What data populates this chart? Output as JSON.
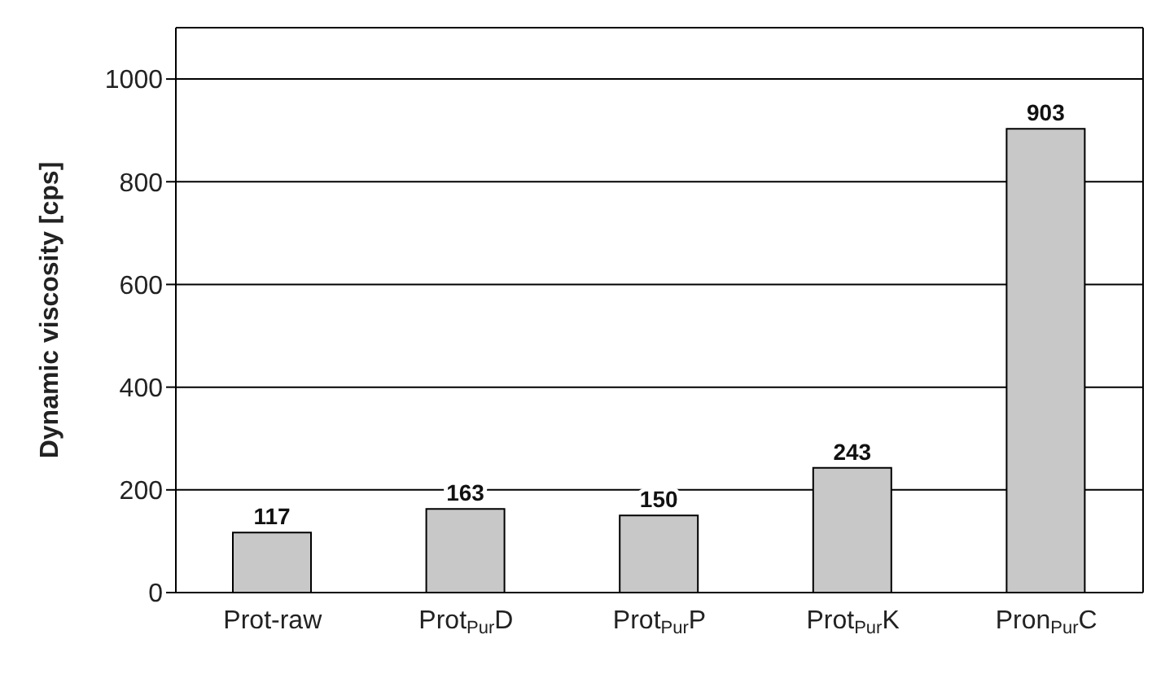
{
  "chart_data": {
    "type": "bar",
    "ylabel": "Dynamic viscosity [cps]",
    "categories": [
      "Prot-raw",
      "Prot$_{Pur}$D",
      "Prot$_{Pur}$P",
      "Prot$_{Pur}$K",
      "Pron$_{Pur}$C"
    ],
    "values": [
      117,
      163,
      150,
      243,
      903
    ],
    "color": "#c8c8c8",
    "ylim": [
      0,
      1100
    ],
    "yticks": [
      0,
      200,
      400,
      600,
      800,
      1000
    ],
    "grid": "y",
    "data_labels": true
  }
}
